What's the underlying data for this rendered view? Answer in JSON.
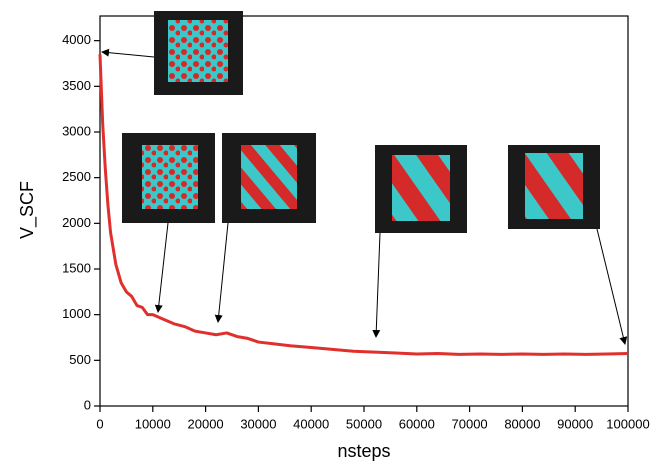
{
  "chart_data": {
    "type": "line",
    "x_label": "nsteps",
    "y_label": "V_SCF",
    "x": [
      0,
      500,
      1000,
      1500,
      2000,
      3000,
      4000,
      5000,
      6000,
      7000,
      8000,
      9000,
      10000,
      12000,
      14000,
      16000,
      18000,
      20000,
      22000,
      24000,
      26000,
      28000,
      30000,
      33000,
      36000,
      40000,
      44000,
      48000,
      52000,
      56000,
      60000,
      64000,
      68000,
      72000,
      76000,
      80000,
      84000,
      88000,
      92000,
      96000,
      100000
    ],
    "values": [
      3850,
      3100,
      2600,
      2200,
      1900,
      1550,
      1350,
      1250,
      1200,
      1100,
      1080,
      1000,
      1000,
      950,
      900,
      870,
      820,
      800,
      780,
      800,
      760,
      740,
      700,
      680,
      660,
      640,
      620,
      600,
      590,
      580,
      570,
      575,
      565,
      570,
      565,
      570,
      565,
      570,
      565,
      570,
      575
    ],
    "color": "#e0302e",
    "xlim": [
      0,
      100000
    ],
    "ylim": [
      0,
      4270
    ],
    "xticks": [
      0,
      10000,
      20000,
      30000,
      40000,
      50000,
      60000,
      70000,
      80000,
      90000,
      100000
    ],
    "yticks": [
      0,
      500,
      1000,
      1500,
      2000,
      2500,
      3000,
      3500,
      4000
    ]
  }
}
